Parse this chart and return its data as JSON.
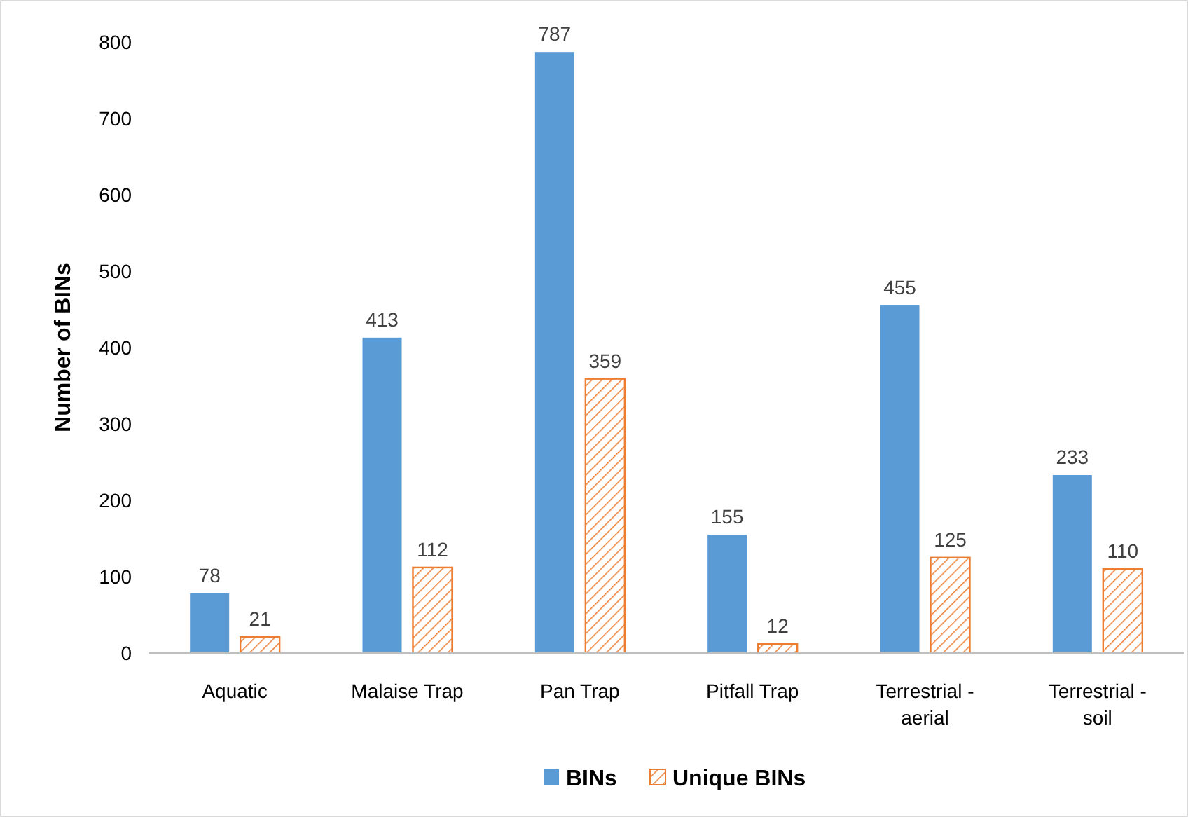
{
  "chart_data": {
    "type": "bar",
    "ylabel": "Number of BINs",
    "categories": [
      "Aquatic",
      "Malaise Trap",
      "Pan Trap",
      "Pitfall Trap",
      "Terrestrial - aerial",
      "Terrestrial - soil"
    ],
    "series": [
      {
        "name": "BINs",
        "color": "#5b9bd5",
        "values": [
          78,
          413,
          787,
          155,
          455,
          233
        ]
      },
      {
        "name": "Unique BINs",
        "color": "#ed7d31",
        "values": [
          21,
          112,
          359,
          12,
          125,
          110
        ]
      }
    ],
    "ylim": [
      0,
      800
    ],
    "yticks": [
      0,
      100,
      200,
      300,
      400,
      500,
      600,
      700,
      800
    ],
    "data_labels": true,
    "legend": "bottom",
    "grid": false
  }
}
